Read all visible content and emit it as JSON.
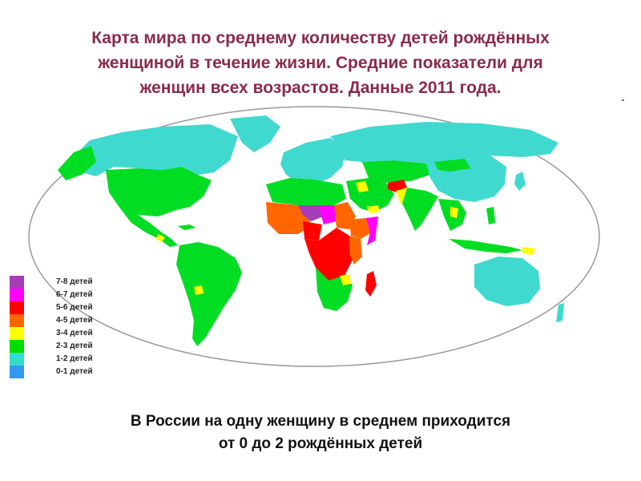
{
  "title": {
    "line1": "Карта мира по среднему количеству детей рождённых",
    "line2": "женщиной в течение жизни. Средние показатели для",
    "line3": "женщин всех возрастов. Данные 2011 года."
  },
  "legend": [
    {
      "label": "7-8 детей",
      "color": "#a63cb8"
    },
    {
      "label": "6-7 детей",
      "color": "#ff00ff"
    },
    {
      "label": "5-6 детей",
      "color": "#ff0000"
    },
    {
      "label": "4-5 детей",
      "color": "#ff6600"
    },
    {
      "label": "3-4 детей",
      "color": "#ffff00"
    },
    {
      "label": "2-3 детей",
      "color": "#00dd00"
    },
    {
      "label": "1-2 детей",
      "color": "#33ddcc"
    },
    {
      "label": "0-1 детей",
      "color": "#3399ee"
    }
  ],
  "footer": {
    "line1": "В России  на одну женщину в среднем приходится",
    "line2": "от 0 до 2 рождённых детей"
  },
  "colors": {
    "title": "#8b2a4a",
    "ocean": "#ffffff",
    "outline": "#999999"
  }
}
